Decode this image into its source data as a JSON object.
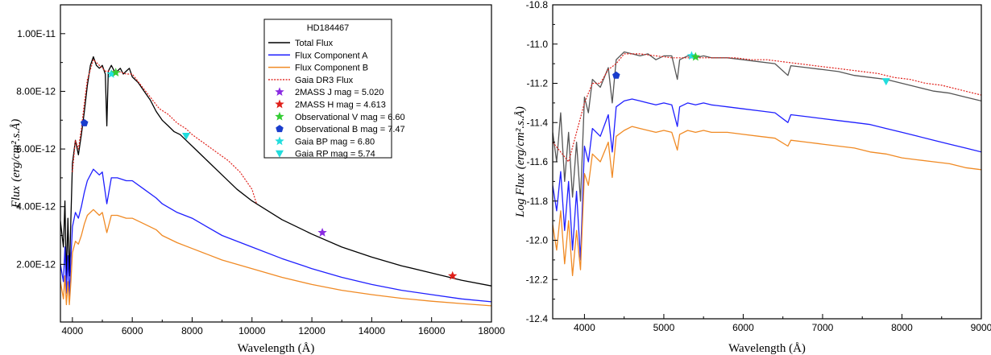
{
  "chart_data": [
    {
      "type": "line",
      "title": "HD184467",
      "xlabel": "Wavelength (Å)",
      "ylabel_main": "Flux",
      "ylabel_units": "(erg/cm².s.Å)",
      "xlim": [
        3600,
        18000
      ],
      "ylim": [
        0,
        1.1e-11
      ],
      "x_ticks": [
        4000,
        6000,
        8000,
        10000,
        12000,
        14000,
        16000,
        18000
      ],
      "x_tick_labels": [
        "4000",
        "6000",
        "8000",
        "10000",
        "12000",
        "14000",
        "16000",
        "18000"
      ],
      "y_ticks": [
        2e-12,
        4e-12,
        6e-12,
        8e-12,
        1e-11
      ],
      "y_tick_labels": [
        "2.00E-12",
        "4.00E-12",
        "6.00E-12",
        "8.00E-12",
        "1.00E-11"
      ],
      "legend": {
        "title": "HD184467",
        "entries": [
          {
            "label": "Total Flux",
            "kind": "line",
            "color": "#000000"
          },
          {
            "label": "Flux Component A",
            "kind": "line",
            "color": "#1f1fff"
          },
          {
            "label": "Flux Component B",
            "kind": "line",
            "color": "#f08a24"
          },
          {
            "label": "Gaia DR3 Flux",
            "kind": "dotted",
            "color": "#e0201a"
          },
          {
            "label": "2MASS J mag = 5.020",
            "kind": "star",
            "color": "#8a2be2"
          },
          {
            "label": "2MASS H mag = 4.613",
            "kind": "star",
            "color": "#e0201a"
          },
          {
            "label": "Observational V mag = 6.60",
            "kind": "star",
            "color": "#33cc33"
          },
          {
            "label": "Observational B mag = 7.47",
            "kind": "pentagon",
            "color": "#1a3dcc"
          },
          {
            "label": "Gaia BP mag = 6.80",
            "kind": "star",
            "color": "#22dddd"
          },
          {
            "label": "Gaia RP mag = 5.74",
            "kind": "tri-down",
            "color": "#22dddd"
          }
        ]
      },
      "series": [
        {
          "name": "Total Flux",
          "color": "#000000",
          "x": [
            3600,
            3700,
            3750,
            3800,
            3850,
            3900,
            3950,
            4000,
            4100,
            4200,
            4300,
            4400,
            4500,
            4600,
            4700,
            4800,
            4900,
            5000,
            5100,
            5150,
            5200,
            5300,
            5400,
            5500,
            5600,
            5700,
            5800,
            5900,
            6000,
            6200,
            6400,
            6600,
            6800,
            7000,
            7200,
            7400,
            7600,
            7800,
            8000,
            8500,
            9000,
            9500,
            10000,
            11000,
            12000,
            13000,
            14000,
            15000,
            16000,
            17000,
            18000
          ],
          "y": [
            3.5e-12,
            2.6e-12,
            4.2e-12,
            1.5e-12,
            3.6e-12,
            1.6e-12,
            3.6e-12,
            5.5e-12,
            6.3e-12,
            5.8e-12,
            6.5e-12,
            7.3e-12,
            8.2e-12,
            8.9e-12,
            9.2e-12,
            8.9e-12,
            8.8e-12,
            8.9e-12,
            8.6e-12,
            6.8e-12,
            8.7e-12,
            8.9e-12,
            8.7e-12,
            8.7e-12,
            8.8e-12,
            8.6e-12,
            8.7e-12,
            8.8e-12,
            8.5e-12,
            8.3e-12,
            8e-12,
            7.7e-12,
            7.3e-12,
            7e-12,
            6.8e-12,
            6.6e-12,
            6.5e-12,
            6.3e-12,
            6.1e-12,
            5.6e-12,
            5.1e-12,
            4.6e-12,
            4.2e-12,
            3.55e-12,
            3.05e-12,
            2.6e-12,
            2.25e-12,
            1.95e-12,
            1.7e-12,
            1.45e-12,
            1.25e-12
          ]
        },
        {
          "name": "Flux Component A",
          "color": "#1f1fff",
          "x": [
            3600,
            3700,
            3750,
            3800,
            3850,
            3900,
            3950,
            4000,
            4100,
            4200,
            4300,
            4400,
            4500,
            4700,
            4900,
            5000,
            5150,
            5300,
            5500,
            5800,
            6000,
            6400,
            6800,
            7000,
            7500,
            8000,
            8500,
            9000,
            10000,
            11000,
            12000,
            13000,
            14000,
            15000,
            16000,
            17000,
            18000
          ],
          "y": [
            2e-12,
            1.4e-12,
            2.6e-12,
            1e-12,
            2.3e-12,
            9e-13,
            2.2e-12,
            3.3e-12,
            3.8e-12,
            3.6e-12,
            4e-12,
            4.5e-12,
            4.9e-12,
            5.3e-12,
            5.1e-12,
            5.2e-12,
            4.1e-12,
            5e-12,
            5e-12,
            4.9e-12,
            4.9e-12,
            4.6e-12,
            4.3e-12,
            4.1e-12,
            3.8e-12,
            3.6e-12,
            3.3e-12,
            3e-12,
            2.6e-12,
            2.2e-12,
            1.85e-12,
            1.55e-12,
            1.3e-12,
            1.1e-12,
            9.5e-13,
            8e-13,
            7e-13
          ]
        },
        {
          "name": "Flux Component B",
          "color": "#f08a24",
          "x": [
            3600,
            3700,
            3750,
            3800,
            3850,
            3900,
            3950,
            4000,
            4100,
            4200,
            4300,
            4400,
            4500,
            4700,
            4900,
            5000,
            5150,
            5300,
            5500,
            5800,
            6000,
            6400,
            6800,
            7000,
            7500,
            8000,
            8500,
            9000,
            10000,
            11000,
            12000,
            13000,
            14000,
            15000,
            16000,
            17000,
            18000
          ],
          "y": [
            1.4e-12,
            8e-13,
            1.6e-12,
            6e-13,
            1.4e-12,
            6e-13,
            1.4e-12,
            2.4e-12,
            2.8e-12,
            2.7e-12,
            3e-12,
            3.4e-12,
            3.7e-12,
            3.9e-12,
            3.7e-12,
            3.8e-12,
            3.1e-12,
            3.7e-12,
            3.7e-12,
            3.6e-12,
            3.6e-12,
            3.4e-12,
            3.2e-12,
            3e-12,
            2.75e-12,
            2.55e-12,
            2.35e-12,
            2.15e-12,
            1.85e-12,
            1.55e-12,
            1.3e-12,
            1.1e-12,
            9.5e-13,
            8.2e-13,
            7.2e-13,
            6.4e-13,
            5.6e-13
          ]
        },
        {
          "name": "Gaia DR3 Flux",
          "color": "#e0201a",
          "dotted": true,
          "x": [
            4000,
            4100,
            4200,
            4300,
            4400,
            4500,
            4700,
            4900,
            5100,
            5300,
            5500,
            5800,
            6000,
            6300,
            6600,
            6900,
            7200,
            7500,
            7800,
            8000,
            8400,
            8800,
            9200,
            9600,
            10000,
            10150
          ],
          "y": [
            5.2e-12,
            6.3e-12,
            6e-12,
            6.7e-12,
            7.6e-12,
            8.4e-12,
            9.1e-12,
            8.9e-12,
            8.7e-12,
            8.7e-12,
            8.7e-12,
            8.6e-12,
            8.6e-12,
            8.2e-12,
            7.8e-12,
            7.4e-12,
            7.2e-12,
            6.9e-12,
            6.7e-12,
            6.5e-12,
            6.2e-12,
            5.9e-12,
            5.6e-12,
            5.2e-12,
            4.6e-12,
            4.1e-12
          ]
        }
      ],
      "markers": [
        {
          "name": "Observational B mag = 7.47",
          "kind": "pentagon",
          "color": "#1a3dcc",
          "x": 4400,
          "y": 6.9e-12
        },
        {
          "name": "Gaia BP mag = 6.80",
          "kind": "star",
          "color": "#22dddd",
          "x": 5300,
          "y": 8.6e-12
        },
        {
          "name": "Observational V mag = 6.60",
          "kind": "star",
          "color": "#33cc33",
          "x": 5450,
          "y": 8.65e-12
        },
        {
          "name": "Gaia RP mag = 5.74",
          "kind": "tri-down",
          "color": "#22dddd",
          "x": 7800,
          "y": 6.45e-12
        },
        {
          "name": "2MASS J mag = 5.020",
          "kind": "star",
          "color": "#8a2be2",
          "x": 12350,
          "y": 3.1e-12
        },
        {
          "name": "2MASS H mag = 4.613",
          "kind": "star",
          "color": "#e0201a",
          "x": 16700,
          "y": 1.6e-12
        }
      ]
    },
    {
      "type": "line",
      "title": "",
      "xlabel": "Wavelength (Å)",
      "ylabel_main": "Log Flux",
      "ylabel_units": "(erg/cm².s.Å)",
      "xlim": [
        3600,
        9000
      ],
      "ylim": [
        -12.4,
        -10.8
      ],
      "x_ticks": [
        4000,
        5000,
        6000,
        7000,
        8000,
        9000
      ],
      "x_tick_labels": [
        "4000",
        "5000",
        "6000",
        "7000",
        "8000",
        "9000"
      ],
      "y_ticks": [
        -12.4,
        -12.2,
        -12.0,
        -11.8,
        -11.6,
        -11.4,
        -11.2,
        -11.0,
        -10.8
      ],
      "y_tick_labels": [
        "-12.4",
        "-12.2",
        "-12.0",
        "-11.8",
        "-11.6",
        "-11.4",
        "-11.2",
        "-11.0",
        "-10.8"
      ],
      "series": [
        {
          "name": "Total Flux",
          "color": "#555555",
          "x": [
            3600,
            3650,
            3700,
            3750,
            3800,
            3850,
            3900,
            3950,
            4000,
            4050,
            4100,
            4200,
            4300,
            4350,
            4400,
            4500,
            4600,
            4700,
            4800,
            4900,
            5000,
            5100,
            5170,
            5200,
            5300,
            5400,
            5500,
            5600,
            5800,
            6000,
            6200,
            6400,
            6563,
            6600,
            6800,
            7000,
            7200,
            7400,
            7600,
            7800,
            8000,
            8200,
            8400,
            8600,
            8800,
            9000
          ],
          "y": [
            -11.45,
            -11.6,
            -11.35,
            -11.7,
            -11.45,
            -11.78,
            -11.5,
            -11.8,
            -11.27,
            -11.35,
            -11.18,
            -11.22,
            -11.12,
            -11.3,
            -11.08,
            -11.04,
            -11.05,
            -11.06,
            -11.05,
            -11.08,
            -11.06,
            -11.06,
            -11.18,
            -11.08,
            -11.06,
            -11.07,
            -11.06,
            -11.07,
            -11.07,
            -11.08,
            -11.09,
            -11.1,
            -11.16,
            -11.11,
            -11.12,
            -11.13,
            -11.14,
            -11.16,
            -11.17,
            -11.18,
            -11.2,
            -11.22,
            -11.24,
            -11.25,
            -11.27,
            -11.29
          ]
        },
        {
          "name": "Flux Component A",
          "color": "#1f1fff",
          "x": [
            3600,
            3650,
            3700,
            3750,
            3800,
            3850,
            3900,
            3950,
            4000,
            4050,
            4100,
            4200,
            4300,
            4350,
            4400,
            4500,
            4600,
            4700,
            4800,
            4900,
            5000,
            5100,
            5170,
            5200,
            5300,
            5400,
            5500,
            5600,
            5800,
            6000,
            6200,
            6400,
            6563,
            6600,
            6800,
            7000,
            7200,
            7400,
            7600,
            7800,
            8000,
            8200,
            8400,
            8600,
            8800,
            9000
          ],
          "y": [
            -11.72,
            -11.85,
            -11.65,
            -11.95,
            -11.7,
            -12.05,
            -11.75,
            -12.1,
            -11.52,
            -11.6,
            -11.43,
            -11.47,
            -11.36,
            -11.55,
            -11.32,
            -11.29,
            -11.28,
            -11.29,
            -11.3,
            -11.31,
            -11.3,
            -11.31,
            -11.42,
            -11.32,
            -11.3,
            -11.31,
            -11.3,
            -11.31,
            -11.32,
            -11.33,
            -11.34,
            -11.35,
            -11.4,
            -11.36,
            -11.37,
            -11.38,
            -11.39,
            -11.4,
            -11.41,
            -11.43,
            -11.45,
            -11.47,
            -11.49,
            -11.51,
            -11.53,
            -11.55
          ]
        },
        {
          "name": "Flux Component B",
          "color": "#f08a24",
          "x": [
            3600,
            3650,
            3700,
            3750,
            3800,
            3850,
            3900,
            3950,
            4000,
            4050,
            4100,
            4200,
            4300,
            4350,
            4400,
            4500,
            4600,
            4700,
            4800,
            4900,
            5000,
            5100,
            5170,
            5200,
            5300,
            5400,
            5500,
            5600,
            5800,
            6000,
            6200,
            6400,
            6563,
            6600,
            6800,
            7000,
            7200,
            7400,
            7600,
            7800,
            8000,
            8200,
            8400,
            8600,
            8800,
            9000
          ],
          "y": [
            -11.92,
            -12.05,
            -11.85,
            -12.12,
            -11.9,
            -12.18,
            -11.95,
            -12.15,
            -11.66,
            -11.72,
            -11.56,
            -11.6,
            -11.5,
            -11.68,
            -11.47,
            -11.44,
            -11.42,
            -11.43,
            -11.44,
            -11.45,
            -11.44,
            -11.45,
            -11.54,
            -11.46,
            -11.44,
            -11.45,
            -11.44,
            -11.45,
            -11.45,
            -11.46,
            -11.47,
            -11.48,
            -11.52,
            -11.49,
            -11.5,
            -11.51,
            -11.52,
            -11.53,
            -11.55,
            -11.56,
            -11.58,
            -11.59,
            -11.6,
            -11.61,
            -11.63,
            -11.64
          ]
        },
        {
          "name": "Gaia DR3 Flux",
          "color": "#e0201a",
          "dotted": true,
          "x": [
            3600,
            3700,
            3800,
            3900,
            4000,
            4100,
            4200,
            4300,
            4400,
            4500,
            4700,
            4900,
            5100,
            5300,
            5500,
            5700,
            5900,
            6100,
            6300,
            6500,
            6700,
            6900,
            7100,
            7300,
            7500,
            7700,
            7900,
            8100,
            8300,
            8500,
            8700,
            9000
          ],
          "y": [
            -11.5,
            -11.55,
            -11.6,
            -11.45,
            -11.3,
            -11.2,
            -11.2,
            -11.13,
            -11.1,
            -11.05,
            -11.05,
            -11.06,
            -11.07,
            -11.07,
            -11.07,
            -11.07,
            -11.07,
            -11.08,
            -11.08,
            -11.09,
            -11.1,
            -11.11,
            -11.12,
            -11.13,
            -11.14,
            -11.15,
            -11.17,
            -11.18,
            -11.2,
            -11.21,
            -11.23,
            -11.26
          ]
        }
      ],
      "markers": [
        {
          "name": "Observational B mag = 7.47",
          "kind": "pentagon",
          "color": "#1a3dcc",
          "x": 4400,
          "y": -11.16
        },
        {
          "name": "Gaia BP mag = 6.80",
          "kind": "star",
          "color": "#22dddd",
          "x": 5350,
          "y": -11.06
        },
        {
          "name": "Observational V mag = 6.60",
          "kind": "star",
          "color": "#33cc33",
          "x": 5400,
          "y": -11.065
        },
        {
          "name": "Gaia RP mag = 5.74",
          "kind": "tri-down",
          "color": "#22dddd",
          "x": 7800,
          "y": -11.19
        }
      ]
    }
  ]
}
